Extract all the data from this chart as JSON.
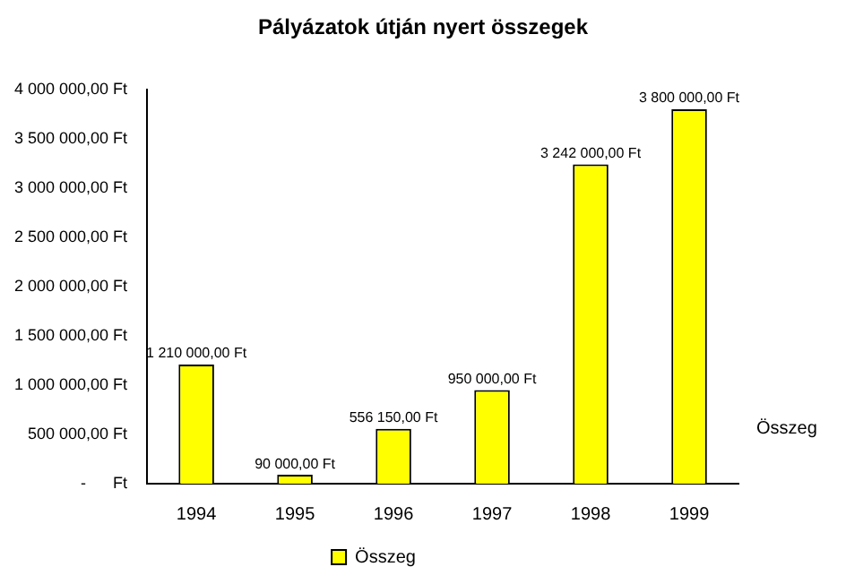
{
  "chart_data": {
    "type": "bar",
    "title": "Pályázatok útján nyert összegek",
    "categories": [
      "1994",
      "1995",
      "1996",
      "1997",
      "1998",
      "1999"
    ],
    "series": [
      {
        "name": "Összeg",
        "color": "#ffff00",
        "values": [
          1210000,
          90000,
          556150,
          950000,
          3242000,
          3800000
        ],
        "value_labels": [
          "1 210 000,00 Ft",
          "90 000,00 Ft",
          "556 150,00 Ft",
          "950 000,00 Ft",
          "3 242 000,00 Ft",
          "3 800 000,00 Ft"
        ]
      }
    ],
    "ylim": [
      0,
      4000000
    ],
    "yticks": [
      {
        "value": 0,
        "label": "-      Ft"
      },
      {
        "value": 500000,
        "label": "500 000,00 Ft"
      },
      {
        "value": 1000000,
        "label": "1 000 000,00 Ft"
      },
      {
        "value": 1500000,
        "label": "1 500 000,00 Ft"
      },
      {
        "value": 2000000,
        "label": "2 000 000,00 Ft"
      },
      {
        "value": 2500000,
        "label": "2 500 000,00 Ft"
      },
      {
        "value": 3000000,
        "label": "3 000 000,00 Ft"
      },
      {
        "value": 3500000,
        "label": "3 500 000,00 Ft"
      },
      {
        "value": 4000000,
        "label": "4 000 000,00 Ft"
      }
    ],
    "annotations": [
      "Összeg"
    ],
    "grid": false,
    "legend": "bottom"
  }
}
